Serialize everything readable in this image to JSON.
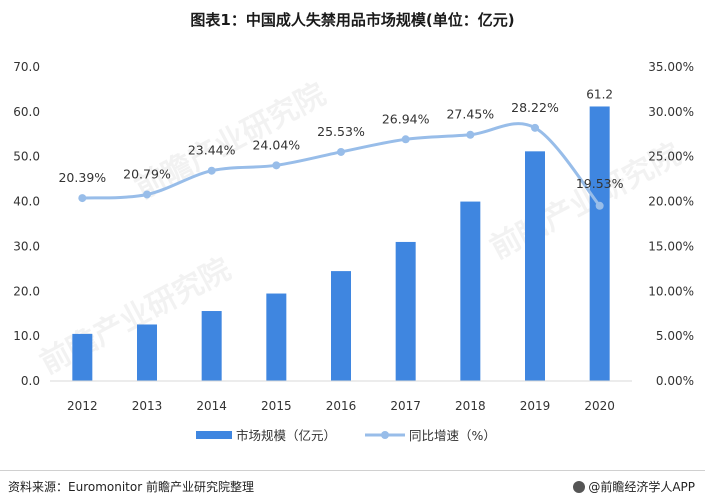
{
  "title": "图表1：中国成人失禁用品市场规模(单位：亿元)",
  "source": "资料来源：Euromonitor 前瞻产业研究院整理",
  "brand": "@前瞻经济学人APP",
  "watermark": "前瞻产业研究院",
  "colors": {
    "bar": "#3f86e0",
    "line": "#98bde9",
    "text": "#333333",
    "axis": "#d9d9d9"
  },
  "chart_data": {
    "type": "bar",
    "categories": [
      "2012",
      "2013",
      "2014",
      "2015",
      "2016",
      "2017",
      "2018",
      "2019",
      "2020"
    ],
    "series": [
      {
        "name": "市场规模（亿元）",
        "type": "bar",
        "axis": "left",
        "values": [
          10.5,
          12.6,
          15.6,
          19.5,
          24.5,
          31.0,
          40.0,
          51.2,
          61.2
        ]
      },
      {
        "name": "同比增速（%）",
        "type": "line",
        "axis": "right",
        "values": [
          20.39,
          20.79,
          23.44,
          24.04,
          25.53,
          26.94,
          27.45,
          28.22,
          19.53
        ]
      }
    ],
    "bar_labels": [
      "",
      "",
      "",
      "",
      "",
      "",
      "",
      "",
      "61.2"
    ],
    "line_labels": [
      "20.39%",
      "20.79%",
      "23.44%",
      "24.04%",
      "25.53%",
      "26.94%",
      "27.45%",
      "28.22%",
      "19.53%"
    ],
    "y_left": {
      "min": 0,
      "max": 70,
      "step": 10,
      "ticks": [
        "0.0",
        "10.0",
        "20.0",
        "30.0",
        "40.0",
        "50.0",
        "60.0",
        "70.0"
      ]
    },
    "y_right": {
      "min": 0,
      "max": 35,
      "step": 5,
      "ticks": [
        "0.00%",
        "5.00%",
        "10.00%",
        "15.00%",
        "20.00%",
        "25.00%",
        "30.00%",
        "35.00%"
      ]
    },
    "grid": false,
    "legend": "bottom-center"
  }
}
